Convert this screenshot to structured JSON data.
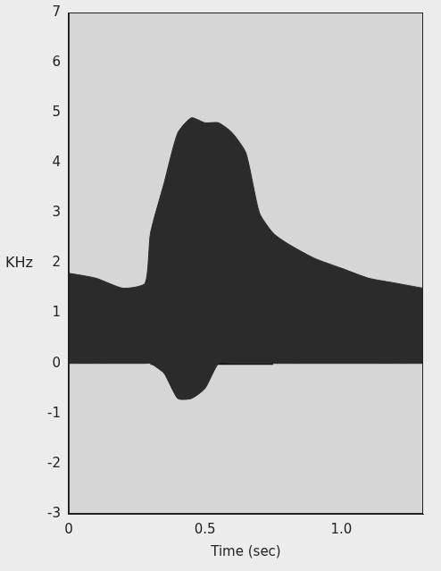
{
  "chart_data": {
    "type": "line",
    "x_label": "Time (sec)",
    "y_label": "KHz",
    "xlim": [
      0,
      1.3
    ],
    "xticks": [
      0,
      0.5,
      {
        "value": 1,
        "label": "1.0"
      }
    ],
    "ylim": [
      -3,
      7
    ],
    "yticks": [
      -3,
      -2,
      -1,
      0,
      1,
      2,
      3,
      4,
      5,
      6,
      7
    ],
    "grid": false,
    "x": [
      0,
      0.1,
      0.2,
      0.28,
      0.3,
      0.35,
      0.4,
      0.45,
      0.5,
      0.55,
      0.6,
      0.65,
      0.7,
      0.75,
      0.8,
      0.9,
      1.0,
      1.1,
      1.2,
      1.3
    ],
    "series": [
      {
        "type": "area",
        "color": "#2b2b2b",
        "values": [
          1.8,
          1.7,
          1.5,
          1.6,
          2.6,
          3.6,
          4.6,
          4.9,
          4.8,
          4.8,
          4.6,
          4.2,
          3.0,
          2.6,
          2.4,
          2.1,
          1.9,
          1.7,
          1.6,
          1.5
        ]
      },
      {
        "type": "line",
        "color": "#2b2b2b",
        "values": [
          0,
          0,
          0,
          0,
          0,
          -0.2,
          -0.7,
          -0.7,
          -0.5,
          0,
          0,
          0,
          0,
          0,
          0,
          0,
          0,
          0,
          0,
          0
        ]
      },
      {
        "type": "line",
        "color": "#111111",
        "values": [
          null,
          null,
          null,
          null,
          0,
          0,
          0,
          0,
          0,
          0,
          0,
          0,
          0,
          0,
          null,
          null,
          null,
          null,
          null,
          null
        ]
      }
    ]
  }
}
